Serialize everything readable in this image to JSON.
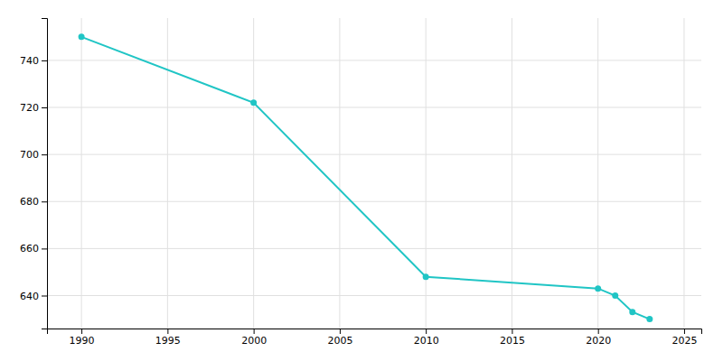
{
  "chart_data": {
    "type": "line",
    "x": [
      1990,
      2000,
      2010,
      2020,
      2021,
      2022,
      2023
    ],
    "values": [
      750,
      722,
      648,
      643,
      640,
      633,
      630
    ],
    "color": "#20c5c5",
    "marker": "circle",
    "xlim": [
      1988,
      2026
    ],
    "ylim": [
      626,
      758
    ],
    "xticks": [
      1990,
      1995,
      2000,
      2005,
      2010,
      2015,
      2020,
      2025
    ],
    "yticks": [
      640,
      660,
      680,
      700,
      720,
      740
    ],
    "grid": true
  }
}
